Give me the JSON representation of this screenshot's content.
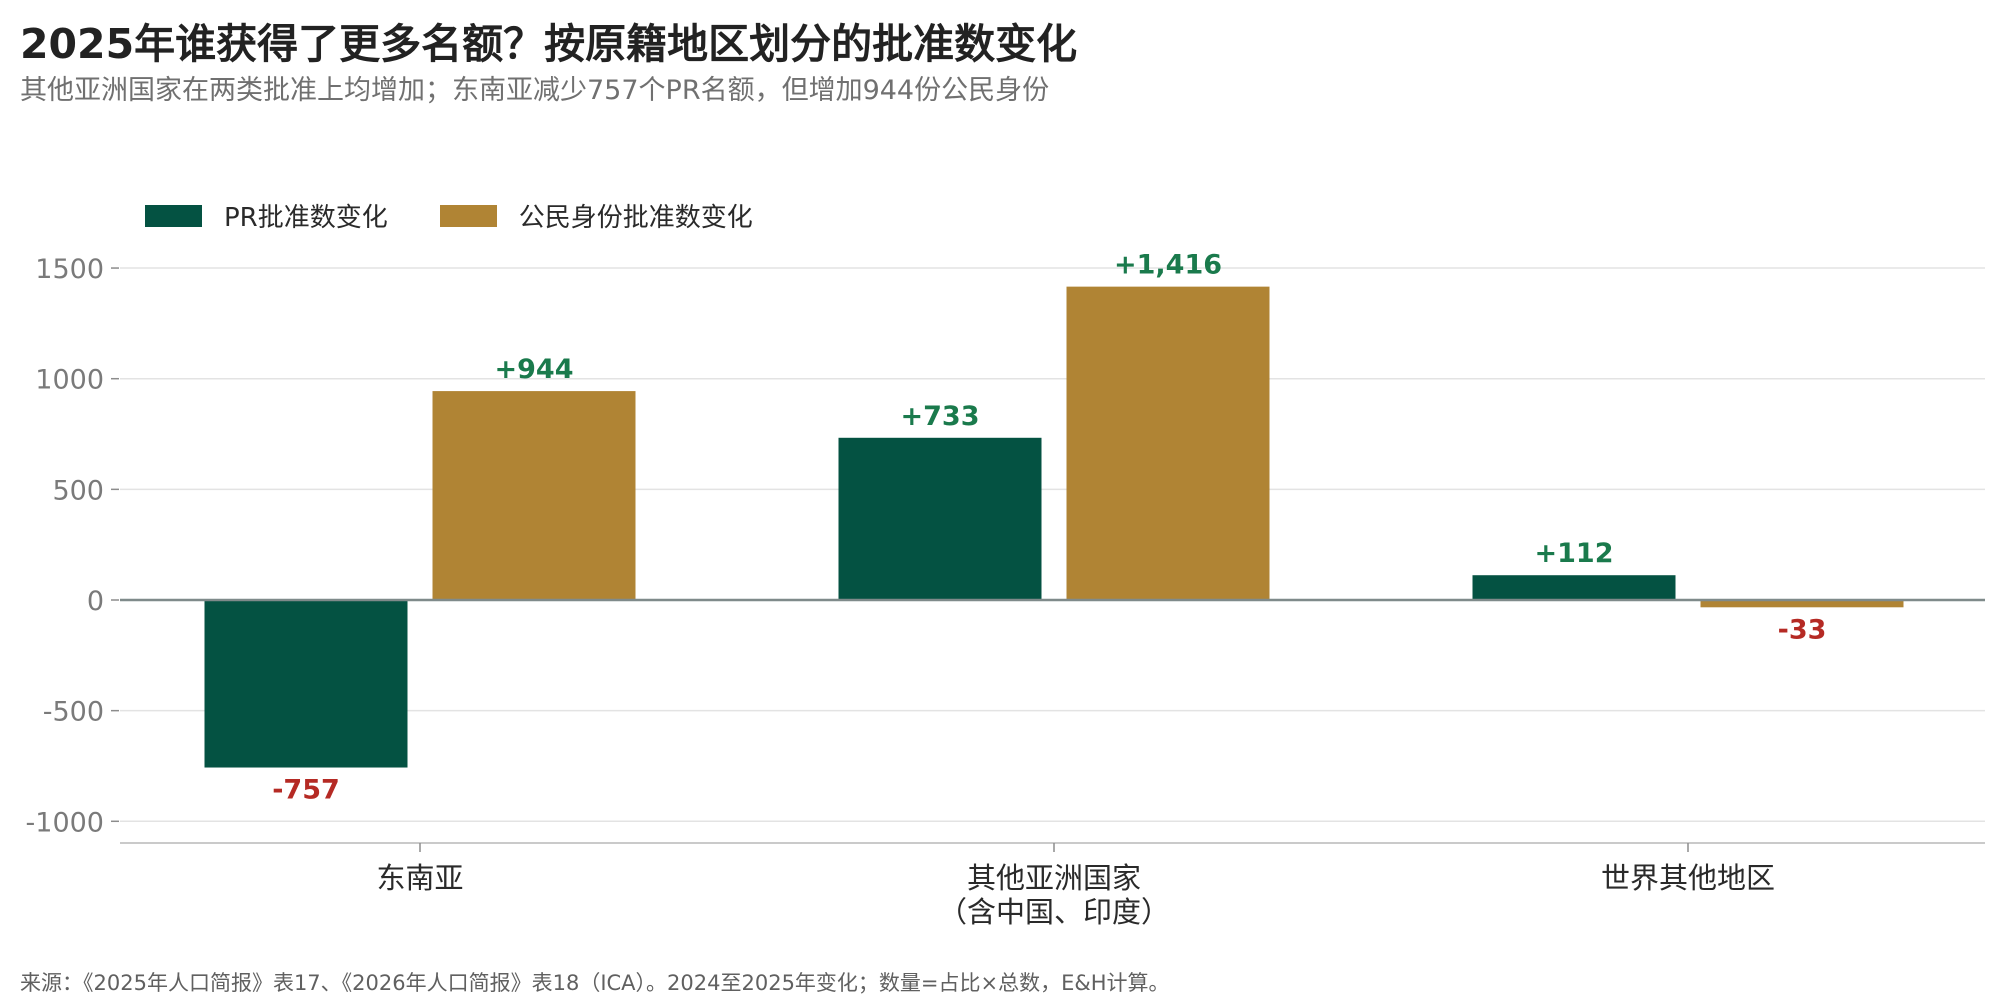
{
  "title": "2025年谁获得了更多名额？按原籍地区划分的批准数变化",
  "subtitle": "其他亚洲国家在两类批准上均增加；东南亚减少757个PR名额，但增加944份公民身份",
  "source": "来源：《2025年人口简报》表17、《2026年人口简报》表18（ICA）。2024至2025年变化；数量=占比×总数，E&H计算。",
  "chart_data": {
    "type": "bar",
    "categories": [
      [
        "东南亚"
      ],
      [
        "其他亚洲国家",
        "（含中国、印度）"
      ],
      [
        "世界其他地区"
      ]
    ],
    "series": [
      {
        "name": "PR批准数变化",
        "values": [
          -757,
          733,
          112
        ],
        "color": "#045242",
        "labels": [
          "-757",
          "+733",
          "+112"
        ]
      },
      {
        "name": "公民身份批准数变化",
        "values": [
          944,
          1416,
          -33
        ],
        "color": "#b08434",
        "labels": [
          "+944",
          "+1,416",
          "-33"
        ]
      }
    ],
    "ylim": [
      -1100,
      1650
    ],
    "yticks": [
      1500,
      1000,
      500,
      0,
      -500,
      -1000
    ],
    "grid": true,
    "legend_position": "top-left",
    "label_colors": {
      "positive": "#1a7a4c",
      "negative": "#b52a24"
    }
  }
}
